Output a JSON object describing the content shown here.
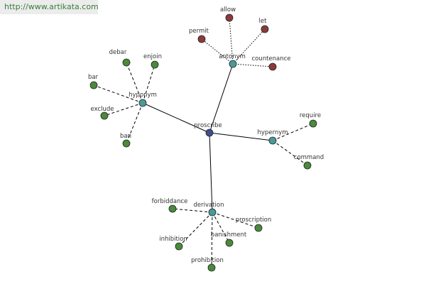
{
  "header": {
    "url": "http://www.artikata.com"
  },
  "nodes": [
    {
      "label": "proscribe"
    },
    {
      "label": "antonym"
    },
    {
      "label": "allow"
    },
    {
      "label": "let"
    },
    {
      "label": "permit"
    },
    {
      "label": "countenance"
    },
    {
      "label": "hyponym"
    },
    {
      "label": "debar"
    },
    {
      "label": "enjoin"
    },
    {
      "label": "bar"
    },
    {
      "label": "exclude"
    },
    {
      "label": "ban"
    },
    {
      "label": "hypernym"
    },
    {
      "label": "require"
    },
    {
      "label": "command"
    },
    {
      "label": "derivation"
    },
    {
      "label": "forbiddance"
    },
    {
      "label": "proscription"
    },
    {
      "label": "banishment"
    },
    {
      "label": "inhibition"
    },
    {
      "label": "prohibition"
    }
  ]
}
